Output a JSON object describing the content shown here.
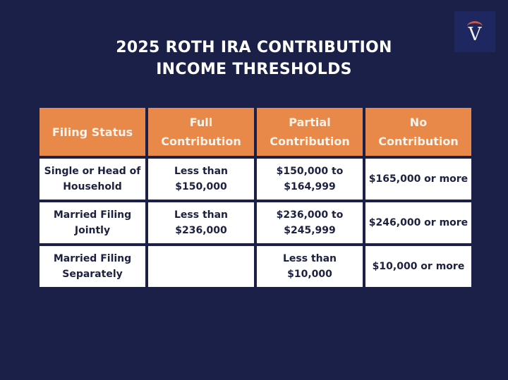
{
  "title": {
    "line1": "2025 ROTH IRA CONTRIBUTION",
    "line2": "INCOME THRESHOLDS"
  },
  "logo": {
    "letter": "V"
  },
  "colors": {
    "background": "#1b2049",
    "header": "#e8894a",
    "cell": "#ffffff",
    "text": "#1c2140"
  },
  "table": {
    "headers": [
      [
        "Filing Status"
      ],
      [
        "Full",
        "Contribution"
      ],
      [
        "Partial",
        "Contribution"
      ],
      [
        "No",
        "Contribution"
      ]
    ],
    "rows": [
      [
        [
          "Single or Head of",
          "Household"
        ],
        [
          "Less than",
          "$150,000"
        ],
        [
          "$150,000 to",
          "$164,999"
        ],
        [
          "$165,000 or more"
        ]
      ],
      [
        [
          "Married Filing",
          "Jointly"
        ],
        [
          "Less than",
          "$236,000"
        ],
        [
          "$236,000 to",
          "$245,999"
        ],
        [
          "$246,000 or more"
        ]
      ],
      [
        [
          "Married Filing",
          "Separately"
        ],
        [],
        [
          "Less than",
          "$10,000"
        ],
        [
          "$10,000 or more"
        ]
      ]
    ]
  }
}
